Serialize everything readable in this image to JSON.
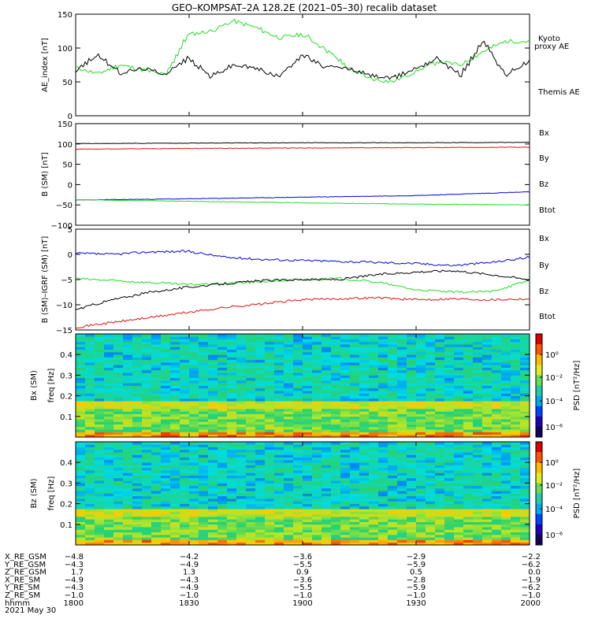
{
  "title": "GEO–KOMPSAT–2A 128.2E (2021–05–30) recalib dataset",
  "colors": {
    "black": "#000000",
    "green": "#22dd22",
    "red": "#dd1111",
    "blue": "#0000dd"
  },
  "chart_data": [
    {
      "type": "line",
      "panel": "ae",
      "ylabel": "AE_index [nT]",
      "ylim": [
        0,
        150
      ],
      "yticks": [
        0,
        50,
        100,
        150
      ],
      "series": [
        {
          "name": "Kyoto proxy AE",
          "color": "#22dd22",
          "x": [
            1800,
            1806,
            1812,
            1818,
            1824,
            1830,
            1836,
            1842,
            1848,
            1854,
            1900,
            1906,
            1912,
            1918,
            1924,
            1930,
            1936,
            1942,
            1948,
            1954,
            2000
          ],
          "values": [
            72,
            62,
            75,
            68,
            60,
            120,
            125,
            140,
            130,
            115,
            120,
            100,
            72,
            55,
            50,
            65,
            80,
            75,
            95,
            110,
            110
          ]
        },
        {
          "name": "Themis AE",
          "color": "#000000",
          "x": [
            1800,
            1806,
            1812,
            1818,
            1824,
            1830,
            1836,
            1842,
            1848,
            1854,
            1900,
            1906,
            1912,
            1918,
            1924,
            1930,
            1936,
            1942,
            1948,
            1954,
            2000
          ],
          "values": [
            65,
            90,
            63,
            70,
            62,
            85,
            58,
            75,
            70,
            58,
            90,
            72,
            70,
            60,
            55,
            70,
            85,
            60,
            110,
            60,
            80
          ]
        }
      ]
    },
    {
      "type": "line",
      "panel": "b_sm",
      "ylabel": "B (SM) [nT]",
      "ylim": [
        -100,
        150
      ],
      "yticks": [
        -100,
        -50,
        0,
        50,
        100,
        150
      ],
      "series": [
        {
          "name": "Bx",
          "color": "#0000dd",
          "x": [
            1800,
            1830,
            1900,
            1930,
            2000
          ],
          "values": [
            -38,
            -35,
            -31,
            -27,
            -18
          ]
        },
        {
          "name": "By",
          "color": "#22dd22",
          "x": [
            1800,
            1830,
            1900,
            1930,
            2000
          ],
          "values": [
            -37,
            -41,
            -45,
            -48,
            -50
          ]
        },
        {
          "name": "Bz",
          "color": "#dd1111",
          "x": [
            1800,
            1830,
            1900,
            1930,
            2000
          ],
          "values": [
            87,
            89,
            90,
            91,
            92
          ]
        },
        {
          "name": "Btot",
          "color": "#000000",
          "x": [
            1800,
            1830,
            1900,
            1930,
            2000
          ],
          "values": [
            101,
            102,
            103,
            103,
            104
          ]
        }
      ]
    },
    {
      "type": "line",
      "panel": "b_minus_igrf",
      "ylabel": "B (SM)–IGRF (SM) [nT]",
      "ylim": [
        -15,
        5
      ],
      "yticks": [
        -15,
        -10,
        -5,
        0,
        5
      ],
      "series": [
        {
          "name": "Bx",
          "color": "#0000dd",
          "x": [
            1800,
            1810,
            1820,
            1830,
            1840,
            1850,
            1900,
            1910,
            1920,
            1930,
            1940,
            1950,
            2000
          ],
          "values": [
            0.2,
            0.0,
            0.5,
            0.6,
            -0.6,
            -1.0,
            -1.2,
            -1.4,
            -1.6,
            -1.8,
            -2.2,
            -1.6,
            -0.6
          ]
        },
        {
          "name": "By",
          "color": "#22dd22",
          "x": [
            1800,
            1810,
            1820,
            1830,
            1840,
            1850,
            1900,
            1910,
            1920,
            1930,
            1940,
            1950,
            2000
          ],
          "values": [
            -4.8,
            -5.2,
            -5.6,
            -6.0,
            -5.8,
            -5.4,
            -5.0,
            -4.8,
            -5.5,
            -7.0,
            -7.5,
            -7.4,
            -5.2
          ]
        },
        {
          "name": "Bz",
          "color": "#dd1111",
          "x": [
            1800,
            1810,
            1820,
            1830,
            1840,
            1850,
            1900,
            1910,
            1920,
            1930,
            1940,
            1950,
            2000
          ],
          "values": [
            -14.5,
            -13.5,
            -12.5,
            -11.5,
            -10.5,
            -9.8,
            -9.0,
            -8.8,
            -8.6,
            -9.0,
            -8.8,
            -9.0,
            -8.8
          ]
        },
        {
          "name": "Btot",
          "color": "#000000",
          "x": [
            1800,
            1810,
            1820,
            1830,
            1840,
            1850,
            1900,
            1910,
            1920,
            1930,
            1940,
            1950,
            2000
          ],
          "values": [
            -11.0,
            -9.0,
            -7.5,
            -6.5,
            -5.8,
            -5.2,
            -5.0,
            -5.0,
            -4.0,
            -3.5,
            -3.2,
            -4.0,
            -5.0
          ]
        }
      ]
    },
    {
      "type": "heatmap",
      "panel": "bx_psd",
      "ylabel": "Bx (SM) freq [Hz]",
      "ylim": [
        0,
        0.5
      ],
      "yticks": [
        0.1,
        0.2,
        0.3,
        0.4
      ],
      "colorbar": {
        "label": "PSD [nT²/Hz]",
        "ticks": [
          "10⁰",
          "10⁻²",
          "10⁻⁴",
          "10⁻⁶"
        ]
      }
    },
    {
      "type": "heatmap",
      "panel": "bz_psd",
      "ylabel": "Bz (SM) freq [Hz]",
      "ylim": [
        0,
        0.5
      ],
      "yticks": [
        0.1,
        0.2,
        0.3,
        0.4
      ],
      "colorbar": {
        "label": "PSD [nT²/Hz]",
        "ticks": [
          "10⁰",
          "10⁻²",
          "10⁻⁴",
          "10⁻⁶"
        ]
      }
    }
  ],
  "legend": {
    "ae": [
      {
        "text": "Kyoto",
        "color": "#22dd22"
      },
      {
        "text": "proxy AE",
        "color": "#22dd22"
      },
      {
        "text": "Themis AE",
        "color": "#000000"
      }
    ],
    "b": [
      {
        "text": "Bx",
        "color": "#0000dd"
      },
      {
        "text": "By",
        "color": "#22dd22"
      },
      {
        "text": "Bz",
        "color": "#dd1111"
      },
      {
        "text": "Btot",
        "color": "#000000"
      }
    ]
  },
  "ephemeris": {
    "rows": [
      {
        "label": "X_RE_GSM",
        "values": [
          "−4.8",
          "−4.2",
          "−3.6",
          "−2.9",
          "−2.2"
        ]
      },
      {
        "label": "Y_RE_GSM",
        "values": [
          "−4.3",
          "−4.9",
          "−5.5",
          "−5.9",
          "−6.2"
        ]
      },
      {
        "label": "Z_RE_GSM",
        "values": [
          "1.7",
          "1.3",
          "0.9",
          "0.5",
          "0.0"
        ]
      },
      {
        "label": "X_RE_SM",
        "values": [
          "−4.9",
          "−4.3",
          "−3.6",
          "−2.8",
          "−1.9"
        ]
      },
      {
        "label": "Y_RE_SM",
        "values": [
          "−4.3",
          "−4.9",
          "−5.5",
          "−5.9",
          "−6.2"
        ]
      },
      {
        "label": "Z_RE_SM",
        "values": [
          "−1.0",
          "−1.0",
          "−1.0",
          "−1.0",
          "−1.0"
        ]
      },
      {
        "label": "hhmm",
        "values": [
          "1800",
          "1830",
          "1900",
          "1930",
          "2000"
        ]
      }
    ],
    "date": "2021 May 30"
  }
}
